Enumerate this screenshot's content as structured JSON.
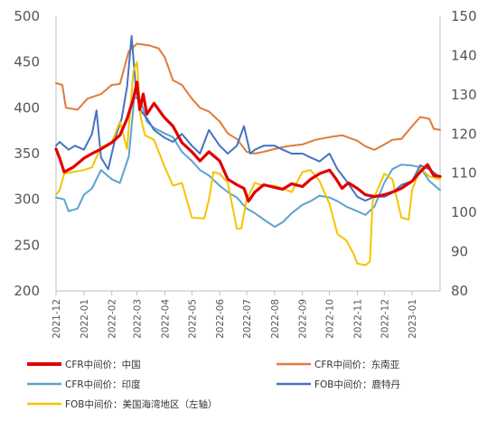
{
  "chart_data": {
    "type": "line",
    "x_start": "2021-12-01",
    "x_end": "2023-02-01",
    "x_ticks": [
      "2021-12",
      "2022-01",
      "2022-02",
      "2022-03",
      "2022-04",
      "2022-05",
      "2022-06",
      "2022-07",
      "2022-08",
      "2022-09",
      "2022-10",
      "2022-11",
      "2022-12",
      "2023-01"
    ],
    "y_left": {
      "min": 200,
      "max": 500,
      "ticks": [
        200,
        250,
        300,
        350,
        400,
        450,
        500
      ]
    },
    "y_right": {
      "min": 80,
      "max": 150,
      "ticks": [
        80,
        90,
        100,
        110,
        120,
        130,
        140,
        150
      ]
    },
    "grid": false,
    "legend_position": "bottom",
    "series": [
      {
        "name": "CFR中间价：中国",
        "axis": "left",
        "color": "#e00000",
        "emphasis": true,
        "points": [
          [
            "2021-12-01",
            355
          ],
          [
            "2021-12-05",
            345
          ],
          [
            "2021-12-10",
            330
          ],
          [
            "2021-12-20",
            335
          ],
          [
            "2022-01-01",
            345
          ],
          [
            "2022-01-10",
            350
          ],
          [
            "2022-01-20",
            355
          ],
          [
            "2022-02-01",
            362
          ],
          [
            "2022-02-10",
            370
          ],
          [
            "2022-02-18",
            388
          ],
          [
            "2022-02-25",
            410
          ],
          [
            "2022-03-01",
            428
          ],
          [
            "2022-03-04",
            398
          ],
          [
            "2022-03-08",
            415
          ],
          [
            "2022-03-12",
            393
          ],
          [
            "2022-03-20",
            405
          ],
          [
            "2022-03-31",
            390
          ],
          [
            "2022-04-10",
            380
          ],
          [
            "2022-04-20",
            362
          ],
          [
            "2022-05-01",
            352
          ],
          [
            "2022-05-10",
            342
          ],
          [
            "2022-05-20",
            352
          ],
          [
            "2022-06-01",
            342
          ],
          [
            "2022-06-10",
            322
          ],
          [
            "2022-06-20",
            316
          ],
          [
            "2022-06-28",
            312
          ],
          [
            "2022-07-03",
            298
          ],
          [
            "2022-07-10",
            308
          ],
          [
            "2022-07-20",
            316
          ],
          [
            "2022-08-01",
            313
          ],
          [
            "2022-08-10",
            311
          ],
          [
            "2022-08-20",
            317
          ],
          [
            "2022-09-01",
            314
          ],
          [
            "2022-09-10",
            322
          ],
          [
            "2022-09-20",
            328
          ],
          [
            "2022-10-01",
            332
          ],
          [
            "2022-10-08",
            323
          ],
          [
            "2022-10-15",
            312
          ],
          [
            "2022-10-22",
            318
          ],
          [
            "2022-11-01",
            312
          ],
          [
            "2022-11-10",
            305
          ],
          [
            "2022-11-20",
            303
          ],
          [
            "2022-12-01",
            305
          ],
          [
            "2022-12-10",
            308
          ],
          [
            "2022-12-20",
            312
          ],
          [
            "2023-01-01",
            320
          ],
          [
            "2023-01-10",
            330
          ],
          [
            "2023-01-18",
            338
          ],
          [
            "2023-01-25",
            326
          ],
          [
            "2023-02-01",
            325
          ]
        ]
      },
      {
        "name": "CFR中间价：东南亚",
        "axis": "left",
        "color": "#e07b39",
        "points": [
          [
            "2021-12-01",
            427
          ],
          [
            "2021-12-08",
            425
          ],
          [
            "2021-12-12",
            400
          ],
          [
            "2021-12-25",
            398
          ],
          [
            "2022-01-05",
            410
          ],
          [
            "2022-01-20",
            415
          ],
          [
            "2022-02-01",
            425
          ],
          [
            "2022-02-10",
            426
          ],
          [
            "2022-02-20",
            462
          ],
          [
            "2022-03-01",
            470
          ],
          [
            "2022-03-15",
            468
          ],
          [
            "2022-03-25",
            465
          ],
          [
            "2022-04-01",
            455
          ],
          [
            "2022-04-10",
            430
          ],
          [
            "2022-04-20",
            425
          ],
          [
            "2022-05-01",
            410
          ],
          [
            "2022-05-10",
            400
          ],
          [
            "2022-05-20",
            396
          ],
          [
            "2022-06-01",
            385
          ],
          [
            "2022-06-10",
            372
          ],
          [
            "2022-06-20",
            366
          ],
          [
            "2022-07-01",
            352
          ],
          [
            "2022-07-10",
            350
          ],
          [
            "2022-07-20",
            352
          ],
          [
            "2022-08-01",
            355
          ],
          [
            "2022-08-15",
            358
          ],
          [
            "2022-09-01",
            360
          ],
          [
            "2022-09-15",
            365
          ],
          [
            "2022-10-01",
            368
          ],
          [
            "2022-10-15",
            370
          ],
          [
            "2022-11-01",
            364
          ],
          [
            "2022-11-10",
            358
          ],
          [
            "2022-11-20",
            354
          ],
          [
            "2022-12-01",
            360
          ],
          [
            "2022-12-10",
            365
          ],
          [
            "2022-12-20",
            366
          ],
          [
            "2023-01-01",
            380
          ],
          [
            "2023-01-10",
            390
          ],
          [
            "2023-01-20",
            388
          ],
          [
            "2023-01-25",
            377
          ],
          [
            "2023-02-01",
            376
          ]
        ]
      },
      {
        "name": "CFR中间价：印度",
        "axis": "left",
        "color": "#5ba3d0",
        "points": [
          [
            "2021-12-01",
            302
          ],
          [
            "2021-12-10",
            300
          ],
          [
            "2021-12-15",
            287
          ],
          [
            "2021-12-25",
            290
          ],
          [
            "2022-01-01",
            305
          ],
          [
            "2022-01-10",
            312
          ],
          [
            "2022-01-20",
            332
          ],
          [
            "2022-02-01",
            322
          ],
          [
            "2022-02-10",
            318
          ],
          [
            "2022-02-20",
            347
          ],
          [
            "2022-02-26",
            412
          ],
          [
            "2022-03-05",
            408
          ],
          [
            "2022-03-12",
            385
          ],
          [
            "2022-03-20",
            378
          ],
          [
            "2022-04-01",
            372
          ],
          [
            "2022-04-10",
            368
          ],
          [
            "2022-04-20",
            352
          ],
          [
            "2022-05-01",
            342
          ],
          [
            "2022-05-10",
            332
          ],
          [
            "2022-05-20",
            326
          ],
          [
            "2022-06-01",
            315
          ],
          [
            "2022-06-10",
            308
          ],
          [
            "2022-06-20",
            302
          ],
          [
            "2022-07-01",
            290
          ],
          [
            "2022-07-10",
            285
          ],
          [
            "2022-07-20",
            278
          ],
          [
            "2022-08-01",
            270
          ],
          [
            "2022-08-10",
            275
          ],
          [
            "2022-08-20",
            285
          ],
          [
            "2022-09-01",
            294
          ],
          [
            "2022-09-10",
            298
          ],
          [
            "2022-09-20",
            304
          ],
          [
            "2022-10-01",
            302
          ],
          [
            "2022-10-10",
            298
          ],
          [
            "2022-10-20",
            292
          ],
          [
            "2022-11-01",
            287
          ],
          [
            "2022-11-10",
            283
          ],
          [
            "2022-11-20",
            292
          ],
          [
            "2022-12-01",
            318
          ],
          [
            "2022-12-10",
            333
          ],
          [
            "2022-12-20",
            338
          ],
          [
            "2023-01-01",
            337
          ],
          [
            "2023-01-10",
            335
          ],
          [
            "2023-01-20",
            320
          ],
          [
            "2023-02-01",
            310
          ]
        ]
      },
      {
        "name": "FOB中间价：鹿特丹",
        "axis": "right",
        "color": "#4472c4",
        "points": [
          [
            "2021-12-01",
            117
          ],
          [
            "2021-12-05",
            118
          ],
          [
            "2021-12-15",
            116
          ],
          [
            "2021-12-22",
            117
          ],
          [
            "2022-01-01",
            116
          ],
          [
            "2022-01-10",
            120
          ],
          [
            "2022-01-15",
            126
          ],
          [
            "2022-01-20",
            114
          ],
          [
            "2022-01-28",
            111
          ],
          [
            "2022-02-05",
            119
          ],
          [
            "2022-02-12",
            124
          ],
          [
            "2022-02-18",
            132
          ],
          [
            "2022-02-23",
            145
          ],
          [
            "2022-02-28",
            131
          ],
          [
            "2022-03-05",
            126
          ],
          [
            "2022-03-12",
            124
          ],
          [
            "2022-03-20",
            121
          ],
          [
            "2022-04-01",
            119
          ],
          [
            "2022-04-10",
            118
          ],
          [
            "2022-04-20",
            120
          ],
          [
            "2022-05-01",
            117
          ],
          [
            "2022-05-10",
            115
          ],
          [
            "2022-05-20",
            121
          ],
          [
            "2022-06-01",
            117
          ],
          [
            "2022-06-10",
            115
          ],
          [
            "2022-06-20",
            117
          ],
          [
            "2022-06-28",
            122
          ],
          [
            "2022-07-05",
            115
          ],
          [
            "2022-07-10",
            116
          ],
          [
            "2022-07-20",
            117
          ],
          [
            "2022-08-01",
            117
          ],
          [
            "2022-08-10",
            116
          ],
          [
            "2022-08-20",
            115
          ],
          [
            "2022-09-01",
            115
          ],
          [
            "2022-09-10",
            114
          ],
          [
            "2022-09-20",
            113
          ],
          [
            "2022-10-01",
            115
          ],
          [
            "2022-10-10",
            111
          ],
          [
            "2022-10-20",
            108
          ],
          [
            "2022-11-01",
            104
          ],
          [
            "2022-11-10",
            103
          ],
          [
            "2022-11-20",
            104
          ],
          [
            "2022-12-01",
            104
          ],
          [
            "2022-12-10",
            105
          ],
          [
            "2022-12-20",
            107
          ],
          [
            "2023-01-01",
            108
          ],
          [
            "2023-01-10",
            112
          ],
          [
            "2023-01-20",
            111
          ],
          [
            "2023-02-01",
            109
          ]
        ]
      },
      {
        "name": "FOB中间价：美国海湾地区（左轴）",
        "axis": "left",
        "color": "#f5c400",
        "points": [
          [
            "2021-12-01",
            305
          ],
          [
            "2021-12-05",
            310
          ],
          [
            "2021-12-10",
            328
          ],
          [
            "2021-12-20",
            330
          ],
          [
            "2022-01-01",
            332
          ],
          [
            "2022-01-10",
            335
          ],
          [
            "2022-01-20",
            357
          ],
          [
            "2022-02-01",
            362
          ],
          [
            "2022-02-10",
            385
          ],
          [
            "2022-02-18",
            355
          ],
          [
            "2022-02-25",
            440
          ],
          [
            "2022-03-01",
            450
          ],
          [
            "2022-03-05",
            390
          ],
          [
            "2022-03-10",
            370
          ],
          [
            "2022-03-20",
            365
          ],
          [
            "2022-04-01",
            335
          ],
          [
            "2022-04-10",
            315
          ],
          [
            "2022-04-20",
            318
          ],
          [
            "2022-05-01",
            280
          ],
          [
            "2022-05-15",
            279
          ],
          [
            "2022-05-20",
            300
          ],
          [
            "2022-05-25",
            330
          ],
          [
            "2022-06-01",
            328
          ],
          [
            "2022-06-10",
            318
          ],
          [
            "2022-06-20",
            268
          ],
          [
            "2022-06-25",
            268
          ],
          [
            "2022-07-01",
            300
          ],
          [
            "2022-07-10",
            318
          ],
          [
            "2022-07-20",
            315
          ],
          [
            "2022-08-01",
            315
          ],
          [
            "2022-08-10",
            312
          ],
          [
            "2022-08-20",
            308
          ],
          [
            "2022-09-01",
            330
          ],
          [
            "2022-09-10",
            332
          ],
          [
            "2022-09-20",
            320
          ],
          [
            "2022-10-01",
            295
          ],
          [
            "2022-10-10",
            262
          ],
          [
            "2022-10-20",
            255
          ],
          [
            "2022-10-28",
            240
          ],
          [
            "2022-11-01",
            230
          ],
          [
            "2022-11-10",
            228
          ],
          [
            "2022-11-15",
            232
          ],
          [
            "2022-11-18",
            298
          ],
          [
            "2022-12-01",
            328
          ],
          [
            "2022-12-10",
            322
          ],
          [
            "2022-12-20",
            280
          ],
          [
            "2022-12-28",
            278
          ],
          [
            "2023-01-01",
            310
          ],
          [
            "2023-01-10",
            334
          ],
          [
            "2023-01-20",
            325
          ],
          [
            "2023-02-01",
            322
          ]
        ]
      }
    ]
  }
}
